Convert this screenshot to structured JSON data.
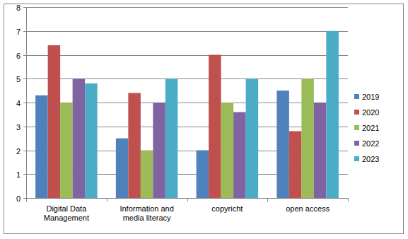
{
  "chart_data": {
    "type": "bar",
    "categories": [
      "Digital Data Management",
      "Information and media literacy",
      "copyricht",
      "open access"
    ],
    "series": [
      {
        "name": "2019",
        "color": "#4f81bd",
        "values": [
          4.3,
          2.5,
          2.0,
          4.5
        ]
      },
      {
        "name": "2020",
        "color": "#c0504d",
        "values": [
          6.4,
          4.4,
          6.0,
          2.8
        ]
      },
      {
        "name": "2021",
        "color": "#9bbb59",
        "values": [
          4.0,
          2.0,
          4.0,
          5.0
        ]
      },
      {
        "name": "2022",
        "color": "#8064a2",
        "values": [
          5.0,
          4.0,
          3.6,
          4.0
        ]
      },
      {
        "name": "2023",
        "color": "#4bacc6",
        "values": [
          4.8,
          5.0,
          5.0,
          7.0
        ]
      }
    ],
    "ylim": [
      0,
      8
    ],
    "yticks": [
      0,
      1,
      2,
      3,
      4,
      5,
      6,
      7,
      8
    ],
    "grid": true,
    "legend": "right"
  }
}
